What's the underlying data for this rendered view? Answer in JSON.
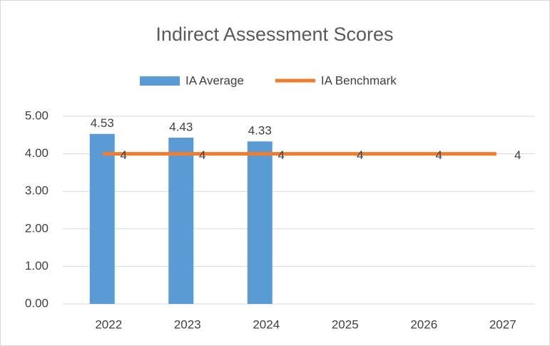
{
  "chart_data": {
    "type": "bar",
    "title": "Indirect Assessment Scores",
    "categories": [
      "2022",
      "2023",
      "2024",
      "2025",
      "2026",
      "2027"
    ],
    "series": [
      {
        "name": "IA Average",
        "type": "bar",
        "color": "#5b9bd5",
        "values": [
          4.53,
          4.43,
          4.33,
          null,
          null,
          null
        ]
      },
      {
        "name": "IA Benchmark",
        "type": "line",
        "color": "#ed7d31",
        "values": [
          4,
          4,
          4,
          4,
          4,
          4
        ]
      }
    ],
    "ylim": [
      0,
      5
    ],
    "yticks": [
      {
        "value": 0,
        "label": "0.00"
      },
      {
        "value": 1,
        "label": "1.00"
      },
      {
        "value": 2,
        "label": "2.00"
      },
      {
        "value": 3,
        "label": "3.00"
      },
      {
        "value": 4,
        "label": "4.00"
      },
      {
        "value": 5,
        "label": "5.00"
      }
    ],
    "grid": true,
    "legend": "top"
  }
}
